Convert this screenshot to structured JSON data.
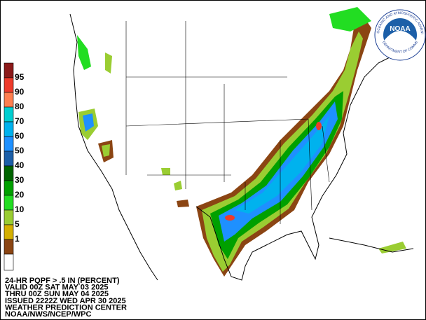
{
  "legend": {
    "labels": [
      "95",
      "90",
      "80",
      "70",
      "60",
      "50",
      "40",
      "30",
      "20",
      "10",
      "5",
      "1"
    ],
    "colors": [
      "#8b1a1a",
      "#ee3b2b",
      "#ff7f50",
      "#00ced1",
      "#00b2ee",
      "#1e90ff",
      "#1c5fa8",
      "#006400",
      "#00a000",
      "#22dd22",
      "#9acd32",
      "#d4b000",
      "#8b4513",
      "#ffffff"
    ]
  },
  "caption": {
    "lines": [
      "24-HR PQPF > .5 IN (PERCENT)",
      "VALID 00Z SAT MAY 03 2025",
      "THRU 00Z SUN MAY 04 2025",
      "ISSUED 2222Z WED APR 30 2025",
      "WEATHER PREDICTION CENTER",
      "NOAA/NWS/NCEP/WPC"
    ]
  },
  "logo": {
    "center": "NOAA",
    "ring_top": "NATIONAL OCEANIC AND ATMOSPHERIC ADMINISTRATION",
    "ring_bottom": "U.S. DEPARTMENT OF COMMERCE"
  }
}
